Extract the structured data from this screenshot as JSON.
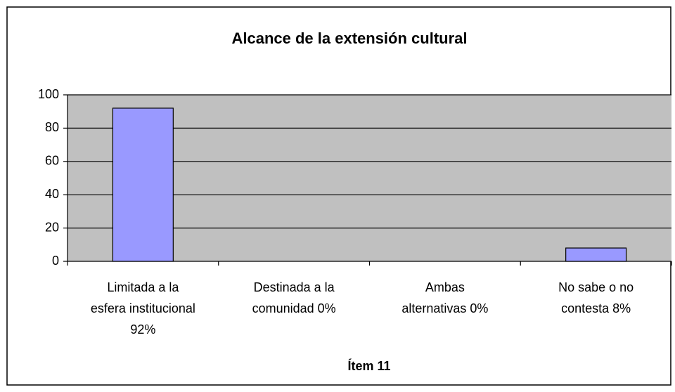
{
  "chart_data": {
    "type": "bar",
    "title": "Alcance de la extensión cultural",
    "x_label": "Ítem 11",
    "categories": [
      "Limitada a la esfera institucional 92%",
      "Destinada a la comunidad 0%",
      "Ambas alternativas 0%",
      "No sabe o no contesta 8%"
    ],
    "values": [
      92,
      0,
      0,
      8
    ],
    "color": "#9999ff",
    "ylim": [
      0,
      100
    ],
    "yticks": [
      0,
      20,
      40,
      60,
      80,
      100
    ],
    "grid": true
  }
}
